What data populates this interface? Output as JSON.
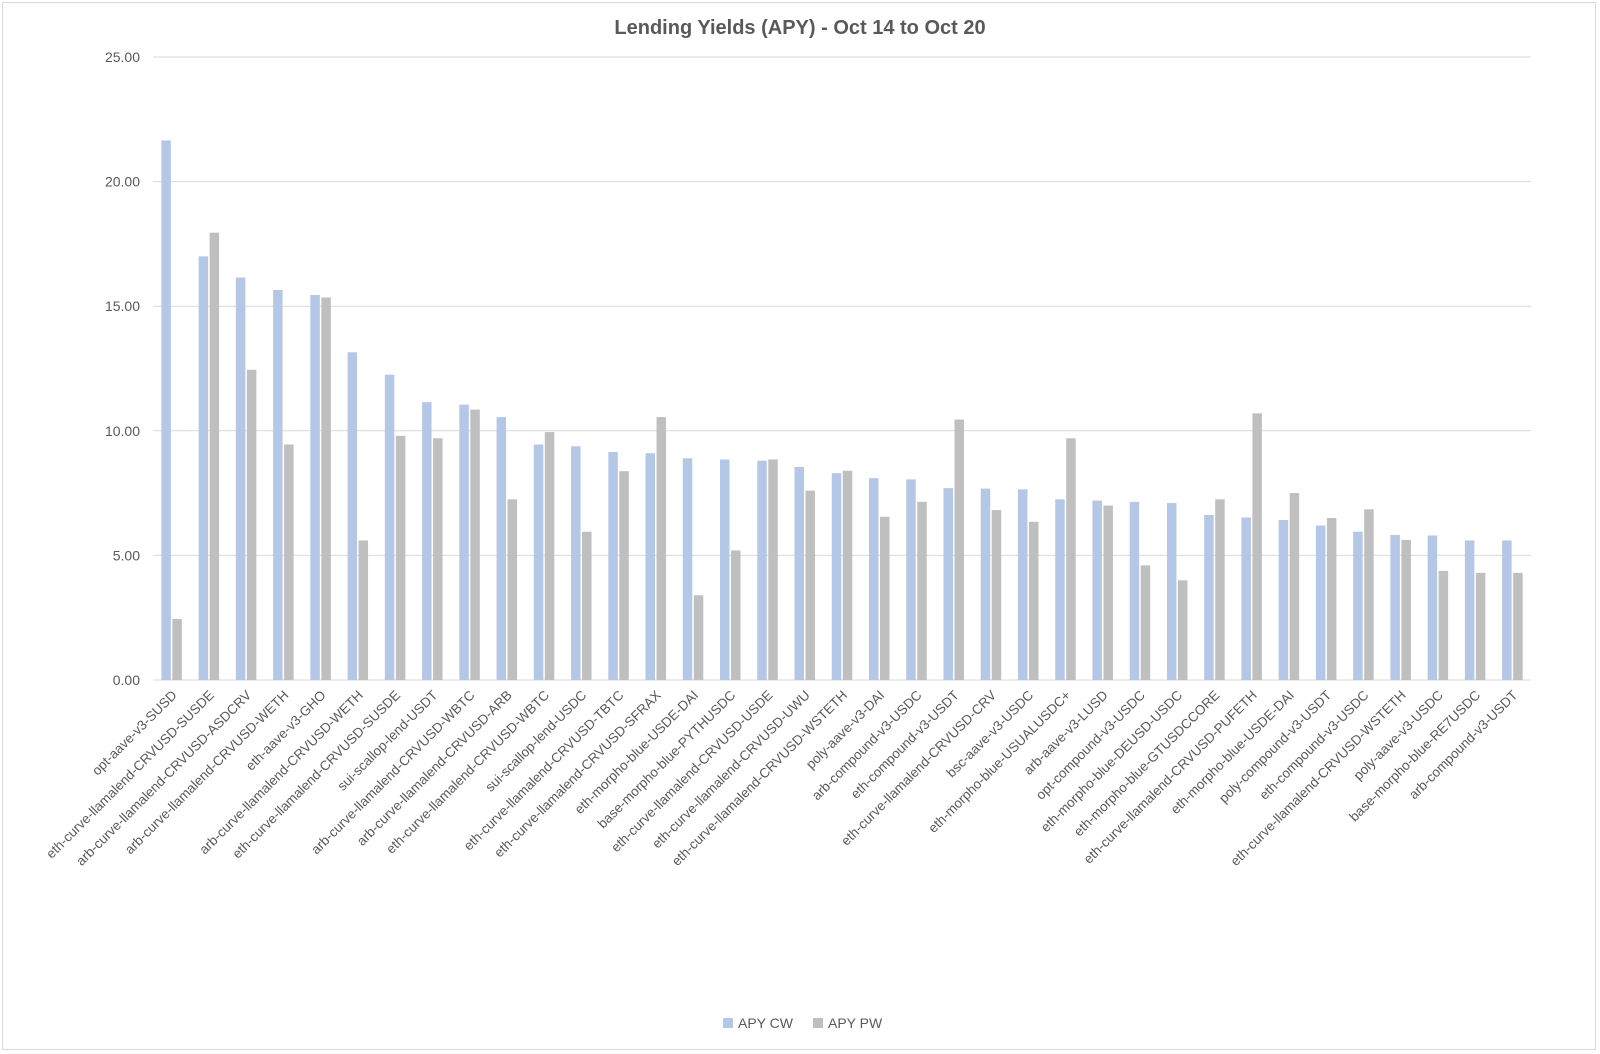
{
  "chart_data": {
    "type": "bar",
    "title": "Lending Yields (APY) - Oct 14 to Oct 20",
    "xlabel": "",
    "ylabel": "",
    "ylim": [
      0,
      25
    ],
    "yticks": [
      "0.00",
      "5.00",
      "10.00",
      "15.00",
      "20.00",
      "25.00"
    ],
    "grid": true,
    "legend_position": "bottom",
    "colors": {
      "APY CW": "#b4c7e7",
      "APY PW": "#bfbfbf"
    },
    "categories": [
      "opt-aave-v3-SUSD",
      "eth-curve-llamalend-CRVUSD-SUSDE",
      "arb-curve-llamalend-CRVUSD-ASDCRV",
      "arb-curve-llamalend-CRVUSD-WETH",
      "eth-aave-v3-GHO",
      "arb-curve-llamalend-CRVUSD-WETH",
      "eth-curve-llamalend-CRVUSD-SUSDE",
      "sui-scallop-lend-USDT",
      "arb-curve-llamalend-CRVUSD-WBTC",
      "arb-curve-llamalend-CRVUSD-ARB",
      "eth-curve-llamalend-CRVUSD-WBTC",
      "sui-scallop-lend-USDC",
      "eth-curve-llamalend-CRVUSD-TBTC",
      "eth-curve-llamalend-CRVUSD-SFRAX",
      "eth-morpho-blue-USDE-DAI",
      "base-morpho-blue-PYTHUSDC",
      "eth-curve-llamalend-CRVUSD-USDE",
      "eth-curve-llamalend-CRVUSD-UWU",
      "eth-curve-llamalend-CRVUSD-WSTETH",
      "poly-aave-v3-DAI",
      "arb-compound-v3-USDC",
      "eth-compound-v3-USDT",
      "eth-curve-llamalend-CRVUSD-CRV",
      "bsc-aave-v3-USDC",
      "eth-morpho-blue-USUALUSDC+",
      "arb-aave-v3-LUSD",
      "opt-compound-v3-USDC",
      "eth-morpho-blue-DEUSD-USDC",
      "eth-morpho-blue-GTUSDCCORE",
      "eth-curve-llamalend-CRVUSD-PUFETH",
      "eth-morpho-blue-USDE-DAI",
      "poly-compound-v3-USDT",
      "eth-compound-v3-USDC",
      "eth-curve-llamalend-CRVUSD-WSTETH",
      "poly-aave-v3-USDC",
      "base-morpho-blue-RE7USDC",
      "arb-compound-v3-USDT"
    ],
    "series": [
      {
        "name": "APY CW",
        "values": [
          21.65,
          17.0,
          16.15,
          15.65,
          15.45,
          13.15,
          12.25,
          11.15,
          11.05,
          10.55,
          9.45,
          9.38,
          9.15,
          9.1,
          8.9,
          8.85,
          8.8,
          8.55,
          8.3,
          8.1,
          8.05,
          7.7,
          7.68,
          7.65,
          7.25,
          7.2,
          7.15,
          7.1,
          6.62,
          6.52,
          6.42,
          6.2,
          5.95,
          5.82,
          5.8,
          5.6,
          5.6
        ]
      },
      {
        "name": "APY PW",
        "values": [
          2.45,
          17.95,
          12.45,
          9.45,
          15.35,
          5.6,
          9.8,
          9.7,
          10.85,
          7.25,
          9.95,
          5.95,
          8.38,
          10.55,
          3.4,
          5.2,
          8.85,
          7.6,
          8.4,
          6.55,
          7.15,
          10.45,
          6.82,
          6.35,
          9.7,
          7.0,
          4.6,
          4.0,
          7.25,
          10.7,
          7.5,
          6.5,
          6.85,
          5.62,
          4.38,
          4.3,
          4.3
        ]
      }
    ]
  }
}
